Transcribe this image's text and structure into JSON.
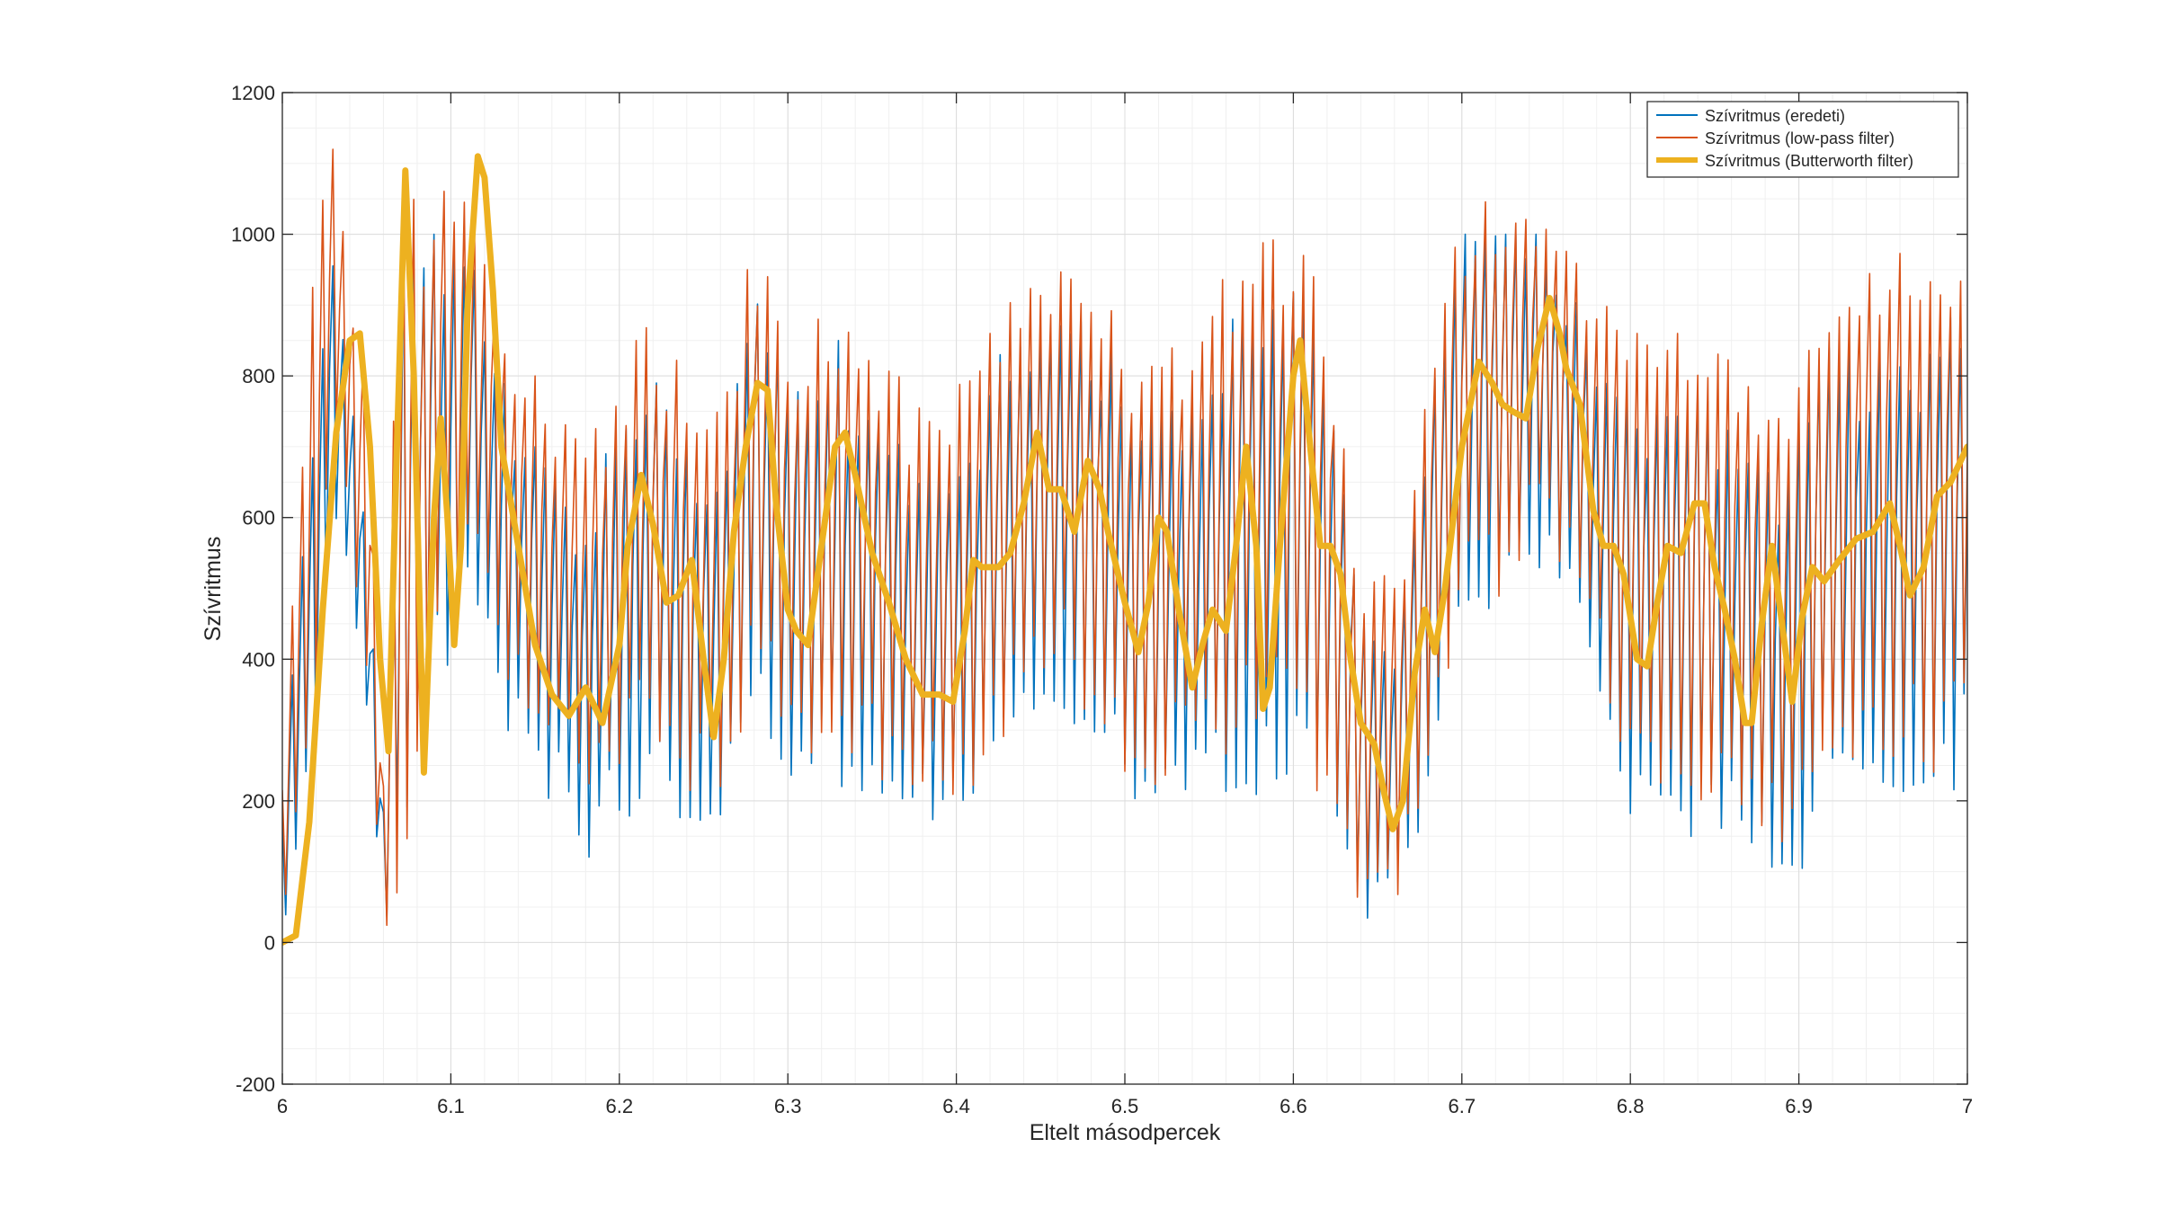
{
  "chart_data": {
    "type": "line",
    "title": "",
    "xlabel": "Eltelt másodpercek",
    "ylabel": "Szívritmus",
    "xlim": [
      6,
      7
    ],
    "ylim": [
      -200,
      1200
    ],
    "xticks": [
      6,
      6.1,
      6.2,
      6.3,
      6.4,
      6.5,
      6.6,
      6.7,
      6.8,
      6.9,
      7
    ],
    "xtick_labels": [
      "6",
      "6.1",
      "6.2",
      "6.3",
      "6.4",
      "6.5",
      "6.6",
      "6.7",
      "6.8",
      "6.9",
      "7"
    ],
    "yticks": [
      -200,
      0,
      200,
      400,
      600,
      800,
      1000,
      1200
    ],
    "ytick_labels": [
      "-200",
      "0",
      "200",
      "400",
      "600",
      "800",
      "1000",
      "1200"
    ],
    "grid": true,
    "minor_grid": true,
    "legend_position": "top-right",
    "sample_rate_hz": 500,
    "series": [
      {
        "name": "Szívritmus (eredeti)",
        "color": "#0072BD",
        "style": "thin line",
        "envelope": [
          [
            6.0,
            0,
            200
          ],
          [
            6.02,
            200,
            800
          ],
          [
            6.03,
            600,
            1000
          ],
          [
            6.05,
            300,
            600
          ],
          [
            6.06,
            0,
            200
          ],
          [
            6.07,
            0,
            1000
          ],
          [
            6.09,
            300,
            1000
          ],
          [
            6.11,
            400,
            1000
          ],
          [
            6.13,
            300,
            800
          ],
          [
            6.15,
            200,
            700
          ],
          [
            6.18,
            100,
            600
          ],
          [
            6.2,
            100,
            750
          ],
          [
            6.22,
            200,
            800
          ],
          [
            6.24,
            100,
            700
          ],
          [
            6.26,
            100,
            650
          ],
          [
            6.28,
            300,
            950
          ],
          [
            6.3,
            150,
            800
          ],
          [
            6.33,
            200,
            850
          ],
          [
            6.35,
            150,
            750
          ],
          [
            6.38,
            100,
            700
          ],
          [
            6.4,
            100,
            700
          ],
          [
            6.43,
            200,
            850
          ],
          [
            6.46,
            300,
            900
          ],
          [
            6.49,
            200,
            850
          ],
          [
            6.51,
            100,
            750
          ],
          [
            6.54,
            150,
            800
          ],
          [
            6.57,
            150,
            900
          ],
          [
            6.6,
            200,
            950
          ],
          [
            6.62,
            100,
            850
          ],
          [
            6.64,
            0,
            500
          ],
          [
            6.66,
            0,
            450
          ],
          [
            6.68,
            150,
            750
          ],
          [
            6.7,
            400,
            1000
          ],
          [
            6.72,
            400,
            1000
          ],
          [
            6.75,
            500,
            1000
          ],
          [
            6.77,
            400,
            900
          ],
          [
            6.8,
            100,
            800
          ],
          [
            6.83,
            100,
            800
          ],
          [
            6.86,
            100,
            750
          ],
          [
            6.89,
            0,
            700
          ],
          [
            6.92,
            150,
            850
          ],
          [
            6.95,
            100,
            850
          ],
          [
            6.98,
            150,
            900
          ],
          [
            7.0,
            200,
            900
          ]
        ]
      },
      {
        "name": "Szívritmus (low-pass filter)",
        "color": "#D95319",
        "style": "thin line",
        "envelope": [
          [
            6.0,
            -20,
            250
          ],
          [
            6.02,
            250,
            1000
          ],
          [
            6.03,
            700,
            1120
          ],
          [
            6.05,
            350,
            800
          ],
          [
            6.06,
            -30,
            250
          ],
          [
            6.07,
            -80,
            1060
          ],
          [
            6.09,
            350,
            1080
          ],
          [
            6.11,
            500,
            1050
          ],
          [
            6.13,
            350,
            900
          ],
          [
            6.15,
            250,
            800
          ],
          [
            6.18,
            150,
            700
          ],
          [
            6.2,
            150,
            820
          ],
          [
            6.22,
            250,
            880
          ],
          [
            6.24,
            150,
            800
          ],
          [
            6.26,
            150,
            750
          ],
          [
            6.28,
            350,
            1000
          ],
          [
            6.3,
            200,
            850
          ],
          [
            6.33,
            250,
            900
          ],
          [
            6.35,
            200,
            820
          ],
          [
            6.38,
            150,
            780
          ],
          [
            6.4,
            150,
            780
          ],
          [
            6.43,
            250,
            900
          ],
          [
            6.46,
            350,
            950
          ],
          [
            6.49,
            250,
            900
          ],
          [
            6.51,
            150,
            820
          ],
          [
            6.54,
            200,
            870
          ],
          [
            6.57,
            200,
            980
          ],
          [
            6.6,
            250,
            1000
          ],
          [
            6.62,
            150,
            900
          ],
          [
            6.64,
            -30,
            560
          ],
          [
            6.66,
            0,
            500
          ],
          [
            6.68,
            200,
            820
          ],
          [
            6.7,
            450,
            1040
          ],
          [
            6.72,
            450,
            1050
          ],
          [
            6.75,
            550,
            1040
          ],
          [
            6.77,
            450,
            950
          ],
          [
            6.8,
            150,
            860
          ],
          [
            6.83,
            150,
            860
          ],
          [
            6.86,
            150,
            820
          ],
          [
            6.89,
            50,
            780
          ],
          [
            6.92,
            200,
            920
          ],
          [
            6.95,
            150,
            1030
          ],
          [
            6.98,
            200,
            980
          ],
          [
            7.0,
            250,
            960
          ]
        ]
      },
      {
        "name": "Szívritmus (Butterworth filter)",
        "color": "#EDB120",
        "style": "thick line",
        "points": [
          [
            6.0,
            0
          ],
          [
            6.008,
            10
          ],
          [
            6.016,
            170
          ],
          [
            6.024,
            470
          ],
          [
            6.032,
            720
          ],
          [
            6.04,
            850
          ],
          [
            6.046,
            860
          ],
          [
            6.052,
            700
          ],
          [
            6.058,
            400
          ],
          [
            6.063,
            270
          ],
          [
            6.068,
            700
          ],
          [
            6.073,
            1090
          ],
          [
            6.078,
            800
          ],
          [
            6.084,
            240
          ],
          [
            6.09,
            600
          ],
          [
            6.094,
            740
          ],
          [
            6.098,
            600
          ],
          [
            6.102,
            420
          ],
          [
            6.106,
            560
          ],
          [
            6.11,
            900
          ],
          [
            6.116,
            1110
          ],
          [
            6.12,
            1080
          ],
          [
            6.125,
            920
          ],
          [
            6.13,
            700
          ],
          [
            6.14,
            560
          ],
          [
            6.15,
            420
          ],
          [
            6.16,
            350
          ],
          [
            6.17,
            320
          ],
          [
            6.18,
            360
          ],
          [
            6.19,
            310
          ],
          [
            6.2,
            420
          ],
          [
            6.205,
            560
          ],
          [
            6.213,
            660
          ],
          [
            6.22,
            590
          ],
          [
            6.228,
            480
          ],
          [
            6.235,
            490
          ],
          [
            6.243,
            540
          ],
          [
            6.25,
            400
          ],
          [
            6.256,
            290
          ],
          [
            6.262,
            400
          ],
          [
            6.268,
            580
          ],
          [
            6.275,
            700
          ],
          [
            6.282,
            790
          ],
          [
            6.288,
            780
          ],
          [
            6.293,
            620
          ],
          [
            6.3,
            470
          ],
          [
            6.305,
            440
          ],
          [
            6.312,
            420
          ],
          [
            6.32,
            560
          ],
          [
            6.328,
            700
          ],
          [
            6.334,
            720
          ],
          [
            6.34,
            660
          ],
          [
            6.35,
            550
          ],
          [
            6.36,
            480
          ],
          [
            6.37,
            400
          ],
          [
            6.38,
            350
          ],
          [
            6.39,
            350
          ],
          [
            6.398,
            340
          ],
          [
            6.405,
            440
          ],
          [
            6.41,
            540
          ],
          [
            6.415,
            530
          ],
          [
            6.425,
            530
          ],
          [
            6.432,
            550
          ],
          [
            6.44,
            620
          ],
          [
            6.448,
            720
          ],
          [
            6.455,
            640
          ],
          [
            6.462,
            640
          ],
          [
            6.47,
            580
          ],
          [
            6.478,
            680
          ],
          [
            6.485,
            640
          ],
          [
            6.49,
            580
          ],
          [
            6.5,
            480
          ],
          [
            6.508,
            410
          ],
          [
            6.514,
            480
          ],
          [
            6.52,
            600
          ],
          [
            6.525,
            580
          ],
          [
            6.532,
            470
          ],
          [
            6.54,
            360
          ],
          [
            6.546,
            420
          ],
          [
            6.552,
            470
          ],
          [
            6.56,
            440
          ],
          [
            6.566,
            560
          ],
          [
            6.572,
            700
          ],
          [
            6.578,
            560
          ],
          [
            6.582,
            330
          ],
          [
            6.586,
            360
          ],
          [
            6.592,
            560
          ],
          [
            6.6,
            800
          ],
          [
            6.604,
            850
          ],
          [
            6.61,
            700
          ],
          [
            6.616,
            560
          ],
          [
            6.622,
            560
          ],
          [
            6.628,
            520
          ],
          [
            6.634,
            400
          ],
          [
            6.64,
            310
          ],
          [
            6.648,
            280
          ],
          [
            6.654,
            210
          ],
          [
            6.659,
            160
          ],
          [
            6.665,
            200
          ],
          [
            6.672,
            380
          ],
          [
            6.678,
            470
          ],
          [
            6.684,
            410
          ],
          [
            6.69,
            500
          ],
          [
            6.695,
            600
          ],
          [
            6.7,
            700
          ],
          [
            6.71,
            820
          ],
          [
            6.718,
            790
          ],
          [
            6.724,
            760
          ],
          [
            6.73,
            750
          ],
          [
            6.738,
            740
          ],
          [
            6.745,
            840
          ],
          [
            6.752,
            910
          ],
          [
            6.758,
            860
          ],
          [
            6.762,
            810
          ],
          [
            6.77,
            760
          ],
          [
            6.778,
            610
          ],
          [
            6.784,
            560
          ],
          [
            6.79,
            560
          ],
          [
            6.796,
            520
          ],
          [
            6.804,
            400
          ],
          [
            6.81,
            390
          ],
          [
            6.816,
            480
          ],
          [
            6.822,
            560
          ],
          [
            6.83,
            550
          ],
          [
            6.838,
            620
          ],
          [
            6.844,
            620
          ],
          [
            6.85,
            530
          ],
          [
            6.856,
            470
          ],
          [
            6.862,
            400
          ],
          [
            6.868,
            310
          ],
          [
            6.872,
            310
          ],
          [
            6.878,
            450
          ],
          [
            6.884,
            560
          ],
          [
            6.89,
            450
          ],
          [
            6.896,
            340
          ],
          [
            6.902,
            460
          ],
          [
            6.908,
            530
          ],
          [
            6.915,
            510
          ],
          [
            6.924,
            540
          ],
          [
            6.934,
            570
          ],
          [
            6.944,
            580
          ],
          [
            6.954,
            620
          ],
          [
            6.96,
            560
          ],
          [
            6.966,
            490
          ],
          [
            6.974,
            530
          ],
          [
            6.982,
            630
          ],
          [
            6.99,
            650
          ],
          [
            7.0,
            700
          ]
        ]
      }
    ]
  }
}
